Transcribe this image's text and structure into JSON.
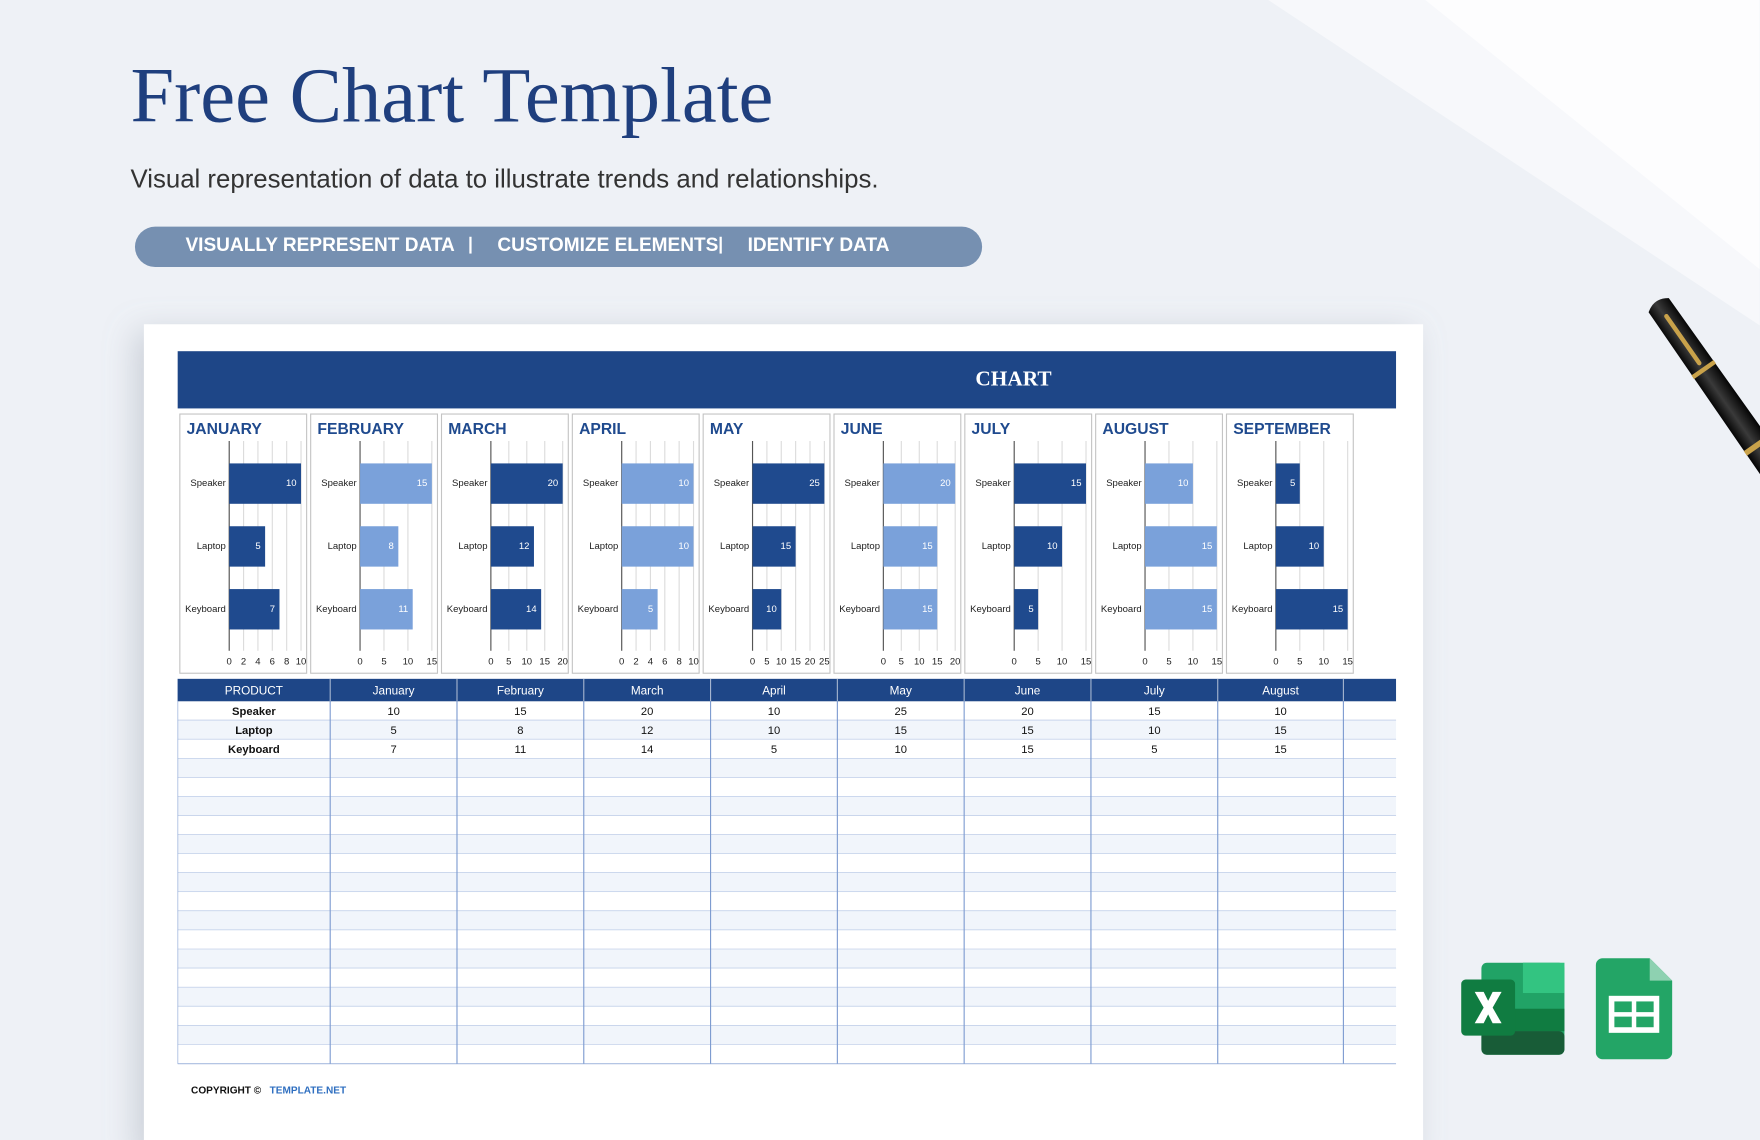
{
  "header": {
    "title": "Free Chart Template",
    "subtitle": "Visual representation of data to illustrate trends and relationships.",
    "tags": [
      "VISUALLY REPRESENT DATA",
      "CUSTOMIZE ELEMENTS",
      "IDENTIFY DATA"
    ]
  },
  "sheet": {
    "title": "CHART",
    "copyright": "COPYRIGHT ©",
    "brand": "TEMPLATE.NET"
  },
  "chart_data": [
    {
      "type": "bar",
      "title": "JANUARY",
      "categories": [
        "Speaker",
        "Laptop",
        "Keyboard"
      ],
      "values": [
        10,
        5,
        7
      ],
      "color": "#1f4a8e",
      "xlim": [
        0,
        10
      ],
      "xticks": [
        0,
        2,
        4,
        6,
        8,
        10
      ],
      "grid": true
    },
    {
      "type": "bar",
      "title": "FEBRUARY",
      "categories": [
        "Speaker",
        "Laptop",
        "Keyboard"
      ],
      "values": [
        15,
        8,
        11
      ],
      "color": "#7aa1da",
      "xlim": [
        0,
        15
      ],
      "xticks": [
        0,
        5,
        10,
        15
      ],
      "grid": true
    },
    {
      "type": "bar",
      "title": "MARCH",
      "categories": [
        "Speaker",
        "Laptop",
        "Keyboard"
      ],
      "values": [
        20,
        12,
        14
      ],
      "color": "#1f4a8e",
      "xlim": [
        0,
        20
      ],
      "xticks": [
        0,
        5,
        10,
        15,
        20
      ],
      "grid": true
    },
    {
      "type": "bar",
      "title": "APRIL",
      "categories": [
        "Speaker",
        "Laptop",
        "Keyboard"
      ],
      "values": [
        10,
        10,
        5
      ],
      "color": "#7aa1da",
      "xlim": [
        0,
        10
      ],
      "xticks": [
        0,
        2,
        4,
        6,
        8,
        10
      ],
      "grid": true
    },
    {
      "type": "bar",
      "title": "MAY",
      "categories": [
        "Speaker",
        "Laptop",
        "Keyboard"
      ],
      "values": [
        25,
        15,
        10
      ],
      "color": "#1f4a8e",
      "xlim": [
        0,
        25
      ],
      "xticks": [
        0,
        5,
        10,
        15,
        20,
        25
      ],
      "grid": true
    },
    {
      "type": "bar",
      "title": "JUNE",
      "categories": [
        "Speaker",
        "Laptop",
        "Keyboard"
      ],
      "values": [
        20,
        15,
        15
      ],
      "color": "#7aa1da",
      "xlim": [
        0,
        20
      ],
      "xticks": [
        0,
        5,
        10,
        15,
        20
      ],
      "grid": true
    },
    {
      "type": "bar",
      "title": "JULY",
      "categories": [
        "Speaker",
        "Laptop",
        "Keyboard"
      ],
      "values": [
        15,
        10,
        5
      ],
      "color": "#1f4a8e",
      "xlim": [
        0,
        15
      ],
      "xticks": [
        0,
        5,
        10,
        15
      ],
      "grid": true
    },
    {
      "type": "bar",
      "title": "AUGUST",
      "categories": [
        "Speaker",
        "Laptop",
        "Keyboard"
      ],
      "values": [
        10,
        15,
        15
      ],
      "color": "#7aa1da",
      "xlim": [
        0,
        15
      ],
      "xticks": [
        0,
        5,
        10,
        15
      ],
      "grid": true
    },
    {
      "type": "bar",
      "title": "SEPTEMBER",
      "categories": [
        "Speaker",
        "Laptop",
        "Keyboard"
      ],
      "values": [
        5,
        10,
        15
      ],
      "color": "#1f4a8e",
      "xlim": [
        0,
        15
      ],
      "xticks": [
        0,
        5,
        10,
        15
      ],
      "grid": true
    }
  ],
  "table": {
    "headers": [
      "PRODUCT",
      "January",
      "February",
      "March",
      "April",
      "May",
      "June",
      "July",
      "August"
    ],
    "rows": [
      [
        "Speaker",
        10,
        15,
        20,
        10,
        25,
        20,
        15,
        10
      ],
      [
        "Laptop",
        5,
        8,
        12,
        10,
        15,
        15,
        10,
        15
      ],
      [
        "Keyboard",
        7,
        11,
        14,
        5,
        10,
        15,
        5,
        15
      ]
    ]
  }
}
